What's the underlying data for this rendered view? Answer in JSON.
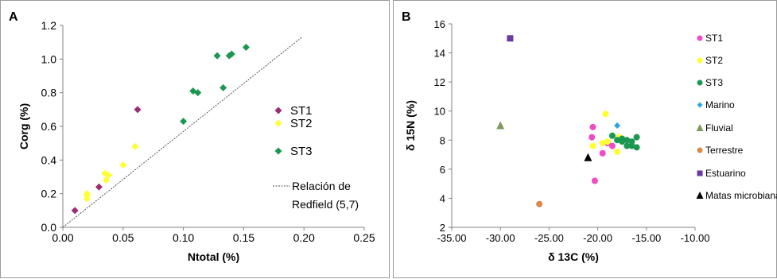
{
  "chart_data": [
    {
      "panel": "A",
      "type": "scatter",
      "xlabel": "Ntotal (%)",
      "ylabel": "Corg (%)",
      "xlim": [
        0.0,
        0.25
      ],
      "ylim": [
        0.0,
        1.2
      ],
      "xticks": [
        "0.00",
        "0.05",
        "0.10",
        "0.15",
        "0.20",
        "0.25"
      ],
      "yticks": [
        "0.0",
        "0.2",
        "0.4",
        "0.6",
        "0.8",
        "1.0",
        "1.2"
      ],
      "grid": false,
      "legend_position": "right",
      "series": [
        {
          "name": "ST1",
          "color": "#9b2d73",
          "marker": "diamond",
          "points": [
            [
              0.01,
              0.1
            ],
            [
              0.03,
              0.24
            ],
            [
              0.062,
              0.7
            ]
          ]
        },
        {
          "name": "ST2",
          "color": "#ffff33",
          "marker": "diamond",
          "points": [
            [
              0.02,
              0.17
            ],
            [
              0.02,
              0.19
            ],
            [
              0.02,
              0.2
            ],
            [
              0.035,
              0.32
            ],
            [
              0.036,
              0.28
            ],
            [
              0.038,
              0.31
            ],
            [
              0.05,
              0.37
            ],
            [
              0.06,
              0.48
            ]
          ]
        },
        {
          "name": "ST3",
          "color": "#1a9850",
          "marker": "diamond",
          "points": [
            [
              0.1,
              0.63
            ],
            [
              0.108,
              0.81
            ],
            [
              0.112,
              0.8
            ],
            [
              0.128,
              1.02
            ],
            [
              0.133,
              0.83
            ],
            [
              0.138,
              1.02
            ],
            [
              0.14,
              1.03
            ],
            [
              0.152,
              1.07
            ]
          ]
        }
      ],
      "reference_line": {
        "name": "Relación de Redfield (5,7)",
        "line1": "Relación de",
        "line2": "Redfield (5,7)",
        "slope": 5.7,
        "x": [
          0.0,
          0.198
        ]
      }
    },
    {
      "panel": "B",
      "type": "scatter",
      "xlabel": "δ 13C (%)",
      "ylabel": "δ 15N (%)",
      "xlim": [
        -35.0,
        -10.0
      ],
      "ylim": [
        2,
        16
      ],
      "xticks": [
        "-35.00",
        "-30.00",
        "-25.00",
        "-20.00",
        "-15.00",
        "-10.00"
      ],
      "yticks": [
        "2",
        "4",
        "6",
        "8",
        "10",
        "12",
        "14",
        "16"
      ],
      "grid": false,
      "legend_position": "right",
      "series": [
        {
          "name": "ST1",
          "color": "#f04bc3",
          "marker": "circle",
          "points": [
            [
              -20.5,
              8.9
            ],
            [
              -20.6,
              8.2
            ],
            [
              -20.3,
              5.2
            ],
            [
              -19.5,
              7.1
            ],
            [
              -19.0,
              7.8
            ],
            [
              -18.5,
              7.6
            ]
          ]
        },
        {
          "name": "ST2",
          "color": "#ffff33",
          "marker": "circle",
          "points": [
            [
              -19.2,
              9.8
            ],
            [
              -20.5,
              7.6
            ],
            [
              -19.5,
              7.8
            ],
            [
              -19.0,
              7.9
            ],
            [
              -18.0,
              7.2
            ],
            [
              -17.8,
              8.2
            ]
          ]
        },
        {
          "name": "ST3",
          "color": "#1a9850",
          "marker": "circle",
          "points": [
            [
              -18.5,
              8.3
            ],
            [
              -18.0,
              8.0
            ],
            [
              -17.5,
              7.9
            ],
            [
              -17.0,
              7.6
            ],
            [
              -17.0,
              8.0
            ],
            [
              -16.5,
              7.9
            ],
            [
              -16.5,
              7.6
            ],
            [
              -16.0,
              8.2
            ],
            [
              -16.0,
              7.5
            ],
            [
              -17.5,
              8.1
            ]
          ]
        },
        {
          "name": "Marino",
          "color": "#2aa6e0",
          "marker": "diamond",
          "points": [
            [
              -18.0,
              9.0
            ]
          ]
        },
        {
          "name": "Fluvial",
          "color": "#7e9a5a",
          "marker": "triangle",
          "points": [
            [
              -30.0,
              9.0
            ]
          ]
        },
        {
          "name": "Terrestre",
          "color": "#d98c4a",
          "marker": "circle",
          "points": [
            [
              -26.0,
              3.6
            ]
          ]
        },
        {
          "name": "Estuarino",
          "color": "#6b3aa0",
          "marker": "square",
          "points": [
            [
              -29.0,
              15.0
            ]
          ]
        },
        {
          "name": "Matas microbianas",
          "color": "#000000",
          "marker": "triangle",
          "points": [
            [
              -21.0,
              6.8
            ]
          ]
        }
      ]
    }
  ]
}
